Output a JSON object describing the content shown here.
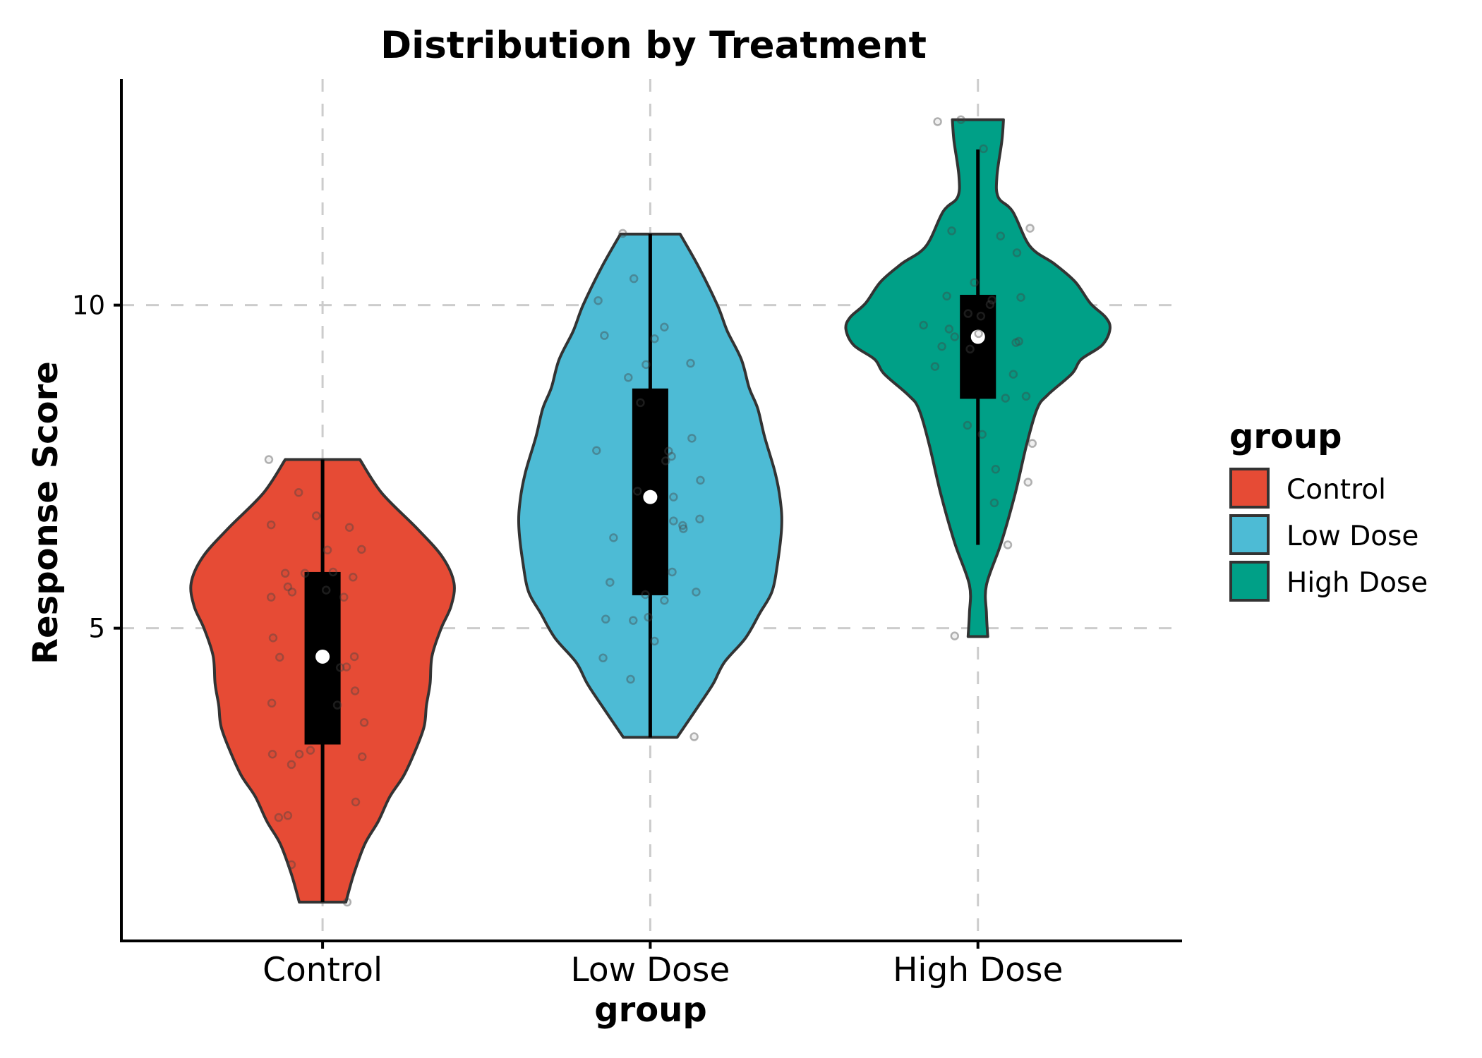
{
  "chart_data": {
    "type": "violin",
    "title": "Distribution by Treatment",
    "xlabel": "group",
    "ylabel": "Response Score",
    "categories": [
      "Control",
      "Low Dose",
      "High Dose"
    ],
    "xlim": [
      -0.614,
      2.623
    ],
    "ylim": [
      0.16,
      13.5
    ],
    "yticks": [
      5,
      10
    ],
    "grid": true,
    "grid_style": "dashed",
    "legend": {
      "title": "group",
      "position": "right",
      "entries": [
        "Control",
        "Low Dose",
        "High Dose"
      ]
    },
    "colors": {
      "outline": "#333333",
      "box": "#000000",
      "median": "#ffffff",
      "gridline": "#cccccc",
      "axis": "#000000",
      "points": "#444444"
    },
    "series": [
      {
        "name": "Control",
        "color": "#E64B35",
        "density": [
          [
            7.61,
            0.114
          ],
          [
            7.09,
            0.181
          ],
          [
            6.54,
            0.289
          ],
          [
            6.1,
            0.366
          ],
          [
            5.7,
            0.401
          ],
          [
            5.34,
            0.392
          ],
          [
            5.0,
            0.362
          ],
          [
            4.57,
            0.334
          ],
          [
            4.14,
            0.328
          ],
          [
            3.81,
            0.317
          ],
          [
            3.48,
            0.31
          ],
          [
            3.12,
            0.284
          ],
          [
            2.72,
            0.248
          ],
          [
            2.39,
            0.205
          ],
          [
            2.01,
            0.17
          ],
          [
            1.66,
            0.129
          ],
          [
            1.19,
            0.095
          ],
          [
            0.76,
            0.071
          ]
        ],
        "box": {
          "whisker_low": 0.76,
          "q1": 3.2,
          "median": 4.56,
          "q3": 5.87,
          "whisker_high": 7.61
        },
        "points": [
          [
            -0.164,
            7.61
          ],
          [
            -0.073,
            7.1
          ],
          [
            -0.019,
            6.74
          ],
          [
            -0.157,
            6.6
          ],
          [
            0.082,
            6.56
          ],
          [
            0.015,
            6.21
          ],
          [
            0.119,
            6.22
          ],
          [
            -0.114,
            5.85
          ],
          [
            -0.054,
            5.85
          ],
          [
            0.032,
            5.87
          ],
          [
            0.093,
            5.79
          ],
          [
            -0.106,
            5.64
          ],
          [
            -0.093,
            5.56
          ],
          [
            -0.157,
            5.48
          ],
          [
            0.011,
            5.59
          ],
          [
            0.065,
            5.48
          ],
          [
            -0.151,
            4.85
          ],
          [
            -0.131,
            4.55
          ],
          [
            0.097,
            4.56
          ],
          [
            0.054,
            4.39
          ],
          [
            0.073,
            4.4
          ],
          [
            0.099,
            4.03
          ],
          [
            -0.155,
            3.84
          ],
          [
            0.045,
            3.81
          ],
          [
            0.127,
            3.54
          ],
          [
            -0.037,
            3.11
          ],
          [
            -0.071,
            3.05
          ],
          [
            -0.153,
            3.05
          ],
          [
            -0.095,
            2.89
          ],
          [
            0.121,
            3.01
          ],
          [
            0.101,
            2.31
          ],
          [
            -0.134,
            2.07
          ],
          [
            -0.106,
            2.1
          ],
          [
            -0.095,
            1.34
          ],
          [
            0.075,
            0.76
          ]
        ]
      },
      {
        "name": "Low Dose",
        "color": "#4DBBD5",
        "density": [
          [
            11.1,
            0.091
          ],
          [
            10.58,
            0.149
          ],
          [
            10.0,
            0.205
          ],
          [
            9.6,
            0.235
          ],
          [
            9.16,
            0.278
          ],
          [
            8.72,
            0.302
          ],
          [
            8.4,
            0.328
          ],
          [
            7.96,
            0.349
          ],
          [
            7.41,
            0.381
          ],
          [
            6.98,
            0.397
          ],
          [
            6.57,
            0.401
          ],
          [
            5.99,
            0.388
          ],
          [
            5.56,
            0.371
          ],
          [
            5.23,
            0.334
          ],
          [
            4.85,
            0.291
          ],
          [
            4.47,
            0.226
          ],
          [
            4.14,
            0.192
          ],
          [
            3.81,
            0.149
          ],
          [
            3.31,
            0.082
          ]
        ],
        "box": {
          "whisker_low": 3.31,
          "q1": 5.51,
          "median": 7.03,
          "q3": 8.71,
          "whisker_high": 11.1
        },
        "points": [
          [
            -0.084,
            11.11
          ],
          [
            -0.05,
            10.41
          ],
          [
            -0.159,
            10.07
          ],
          [
            0.043,
            9.66
          ],
          [
            -0.14,
            9.53
          ],
          [
            0.013,
            9.48
          ],
          [
            -0.013,
            9.08
          ],
          [
            0.123,
            9.1
          ],
          [
            -0.067,
            8.88
          ],
          [
            -0.03,
            8.49
          ],
          [
            0.127,
            7.94
          ],
          [
            -0.164,
            7.75
          ],
          [
            0.056,
            7.74
          ],
          [
            0.065,
            7.66
          ],
          [
            0.047,
            7.59
          ],
          [
            0.153,
            7.29
          ],
          [
            -0.039,
            7.12
          ],
          [
            0.071,
            7.03
          ],
          [
            0.071,
            6.66
          ],
          [
            0.099,
            6.59
          ],
          [
            0.101,
            6.54
          ],
          [
            0.151,
            6.69
          ],
          [
            -0.112,
            6.4
          ],
          [
            0.067,
            5.87
          ],
          [
            -0.123,
            5.71
          ],
          [
            0.14,
            5.56
          ],
          [
            -0.015,
            5.52
          ],
          [
            0.043,
            5.43
          ],
          [
            -0.006,
            5.17
          ],
          [
            -0.136,
            5.14
          ],
          [
            -0.052,
            5.12
          ],
          [
            0.013,
            4.8
          ],
          [
            -0.144,
            4.54
          ],
          [
            -0.06,
            4.21
          ],
          [
            0.134,
            3.32
          ]
        ]
      },
      {
        "name": "High Dose",
        "color": "#00A087",
        "density": [
          [
            12.87,
            0.078
          ],
          [
            12.54,
            0.073
          ],
          [
            12.0,
            0.058
          ],
          [
            11.67,
            0.062
          ],
          [
            11.45,
            0.106
          ],
          [
            10.91,
            0.159
          ],
          [
            10.64,
            0.233
          ],
          [
            10.36,
            0.297
          ],
          [
            10.03,
            0.343
          ],
          [
            9.81,
            0.39
          ],
          [
            9.63,
            0.403
          ],
          [
            9.38,
            0.379
          ],
          [
            9.16,
            0.315
          ],
          [
            8.94,
            0.287
          ],
          [
            8.61,
            0.213
          ],
          [
            8.4,
            0.181
          ],
          [
            7.85,
            0.149
          ],
          [
            7.09,
            0.114
          ],
          [
            6.32,
            0.071
          ],
          [
            5.67,
            0.026
          ],
          [
            5.23,
            0.026
          ],
          [
            4.87,
            0.03
          ]
        ],
        "box": {
          "whisker_low": 6.29,
          "q1": 8.55,
          "median": 9.51,
          "q3": 10.16,
          "whisker_high": 12.41
        },
        "points": [
          [
            -0.123,
            12.84
          ],
          [
            -0.052,
            12.87
          ],
          [
            0.017,
            12.42
          ],
          [
            -0.08,
            11.15
          ],
          [
            0.069,
            11.07
          ],
          [
            0.159,
            11.19
          ],
          [
            0.119,
            10.81
          ],
          [
            -0.011,
            10.35
          ],
          [
            -0.095,
            10.14
          ],
          [
            0.131,
            10.12
          ],
          [
            0.043,
            10.08
          ],
          [
            0.037,
            10.01
          ],
          [
            -0.03,
            9.87
          ],
          [
            0.009,
            9.83
          ],
          [
            -0.166,
            9.69
          ],
          [
            -0.088,
            9.63
          ],
          [
            -0.071,
            9.51
          ],
          [
            0.002,
            9.56
          ],
          [
            -0.11,
            9.36
          ],
          [
            -0.024,
            9.32
          ],
          [
            0.116,
            9.42
          ],
          [
            0.125,
            9.44
          ],
          [
            -0.131,
            9.05
          ],
          [
            0.108,
            8.93
          ],
          [
            0.084,
            8.56
          ],
          [
            0.147,
            8.59
          ],
          [
            -0.032,
            8.14
          ],
          [
            0.013,
            8.0
          ],
          [
            0.166,
            7.86
          ],
          [
            0.054,
            7.46
          ],
          [
            0.153,
            7.26
          ],
          [
            0.05,
            6.94
          ],
          [
            0.091,
            6.29
          ],
          [
            -0.071,
            4.88
          ]
        ]
      }
    ]
  }
}
